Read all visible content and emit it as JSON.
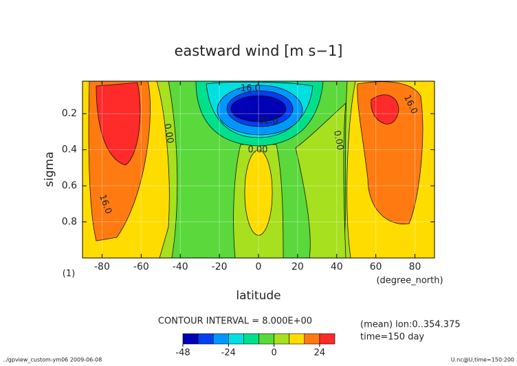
{
  "chart_data": {
    "type": "contour",
    "title": "eastward wind [m s−1]",
    "xlabel": "latitude",
    "xunit": "(degree_north)",
    "ylabel": "sigma",
    "yunit": "(1)",
    "xlim": [
      -90,
      90
    ],
    "xticks": [
      -80,
      -60,
      -40,
      -20,
      0,
      20,
      40,
      60,
      80
    ],
    "ylim": [
      0.02,
      1.0
    ],
    "yticks": [
      0.2,
      0.4,
      0.6,
      0.8
    ],
    "y_inverted": true,
    "grid": true,
    "contour_labels": [
      "-16.0",
      "-32.0",
      "0.00",
      "0.00",
      "0.00",
      "16.0",
      "16.0"
    ],
    "contour_interval_text": "CONTOUR INTERVAL = 8.000E+00",
    "notes": [
      "(mean) lon:0..354.375",
      "time=150 day"
    ],
    "colorbar": {
      "levels": [
        -48,
        -40,
        -32,
        -24,
        -16,
        -8,
        0,
        8,
        16,
        24,
        32
      ],
      "colors": [
        "#0000b4",
        "#0040f0",
        "#0098ff",
        "#00e0e0",
        "#00e08c",
        "#5ad83c",
        "#a6e01e",
        "#ffdc00",
        "#ff7a10",
        "#ff2a2a"
      ],
      "ticks": [
        -48,
        -24,
        0,
        24
      ]
    },
    "footer_left": "../gpview_custom-ym06  2009-06-08",
    "footer_right": "U.nc@U,time=150:200"
  }
}
